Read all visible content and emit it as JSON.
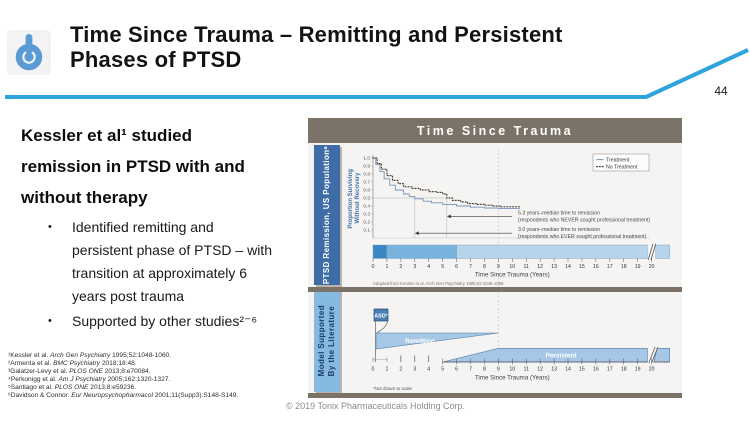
{
  "slide": {
    "title_line1": "Time Since Trauma – Remitting and Persistent",
    "title_line2": "Phases of PTSD",
    "page_number": "44",
    "copyright": "© 2019 Tonix Pharmaceuticals Holding Corp.",
    "accent_color": "#2ea4dd",
    "logo_color": "#5b9bd5"
  },
  "left_panel": {
    "heading": "Kessler et al¹ studied remission in PTSD with and without therapy",
    "bullet_marker": "•",
    "bullets": [
      "Identified remitting and persistent phase of PTSD – with transition at approximately 6 years post trauma",
      "Supported by other studies²⁻⁶"
    ],
    "references": [
      {
        "pre": "¹Kessler et al. ",
        "journal": "Arch Gen Psychiatry",
        "post": " 1995;52:1048-1060."
      },
      {
        "pre": "²Armenta et al. ",
        "journal": "BMC Psychiatry",
        "post": " 2018;18:48."
      },
      {
        "pre": "³Galatzer-Levy et al. ",
        "journal": "PLOS ONE",
        "post": " 2013;8:e70084."
      },
      {
        "pre": "⁴Perkonigg et al. ",
        "journal": "Am J Psychiatry",
        "post": " 2005;162:1320-1327."
      },
      {
        "pre": "⁵Santiago et al. ",
        "journal": "PLOS ONE",
        "post": " 2013;8:e59236."
      },
      {
        "pre": "⁶Davidson & Connor. ",
        "journal": "Eur Neuropsychopharmacol",
        "post": " 2001;11(Supp3):S148-S149."
      }
    ]
  },
  "figure": {
    "header": "Time Since Trauma",
    "sidebar_top": "PTSD Remission, US Populationᵃ",
    "sidebar_bottom_line1": "Model Supported",
    "sidebar_bottom_line2": "By the Literature",
    "header_color": "#7b7268",
    "sidebar_top_color": "#3e6ca6",
    "sidebar_bottom_color": "#86b9e0"
  },
  "chart_data": [
    {
      "type": "line",
      "subtype": "kaplan-meier-survival",
      "title": "PTSD Remission, US Population",
      "xlabel": "Time Since Trauma (Years)",
      "ylabel": "Proportion Surviving Without Recovery",
      "xlim": [
        0,
        21.3
      ],
      "ylim": [
        0,
        1.0
      ],
      "x_ticks": [
        0,
        1,
        2,
        3,
        4,
        5,
        6,
        7,
        8,
        9,
        10,
        11,
        12,
        13,
        14,
        15,
        16,
        17,
        18,
        19,
        20
      ],
      "y_ticks": [
        1.0,
        0.9,
        0.8,
        0.7,
        0.6,
        0.5,
        0.4,
        0.3,
        0.2,
        0.1
      ],
      "axis_break_after_year": 20,
      "grid": false,
      "legend_position": "top-right",
      "legend": [
        "Treatment",
        "No Treatment"
      ],
      "series": [
        {
          "name": "Treatment",
          "style": "solid",
          "color": "#7693b8",
          "points": [
            [
              0,
              1.0
            ],
            [
              0.2,
              0.92
            ],
            [
              0.5,
              0.83
            ],
            [
              0.8,
              0.74
            ],
            [
              1.2,
              0.66
            ],
            [
              1.6,
              0.6
            ],
            [
              2.2,
              0.55
            ],
            [
              2.6,
              0.52
            ],
            [
              3.0,
              0.49
            ],
            [
              3.6,
              0.46
            ],
            [
              4.2,
              0.44
            ],
            [
              5.0,
              0.42
            ],
            [
              6.0,
              0.4
            ],
            [
              7.0,
              0.385
            ],
            [
              8.0,
              0.375
            ],
            [
              9.0,
              0.37
            ],
            [
              10.5,
              0.36
            ]
          ]
        },
        {
          "name": "No Treatment",
          "style": "dotted",
          "color": "#45413c",
          "points": [
            [
              0,
              1.0
            ],
            [
              0.3,
              0.93
            ],
            [
              0.6,
              0.86
            ],
            [
              1.0,
              0.78
            ],
            [
              1.4,
              0.72
            ],
            [
              1.8,
              0.68
            ],
            [
              2.2,
              0.64
            ],
            [
              2.8,
              0.62
            ],
            [
              3.4,
              0.6
            ],
            [
              4.0,
              0.58
            ],
            [
              4.6,
              0.57
            ],
            [
              5.0,
              0.55
            ],
            [
              5.3,
              0.5
            ],
            [
              5.7,
              0.47
            ],
            [
              6.3,
              0.45
            ],
            [
              6.8,
              0.43
            ],
            [
              7.4,
              0.42
            ],
            [
              8.0,
              0.41
            ],
            [
              8.6,
              0.4
            ],
            [
              9.2,
              0.39
            ],
            [
              10.5,
              0.38
            ]
          ]
        }
      ],
      "median_refline_y": 0.5,
      "annotations": [
        {
          "value_years": 5.3,
          "arrow_y": 0.27,
          "line1": "5.3 years–median time to remission",
          "line2": "(respondents who NEVER sought professional treatment)"
        },
        {
          "value_years": 3.0,
          "arrow_y": 0.06,
          "line1": "3.0 years–median time to remission",
          "line2": "(respondents who EVER sought professional treatment)"
        }
      ],
      "timeline_bar": {
        "segments": [
          {
            "from": 0,
            "to": 1,
            "color": "#3c87c3"
          },
          {
            "from": 1,
            "to": 6,
            "color": "#79b2dc"
          },
          {
            "from": 6,
            "to": 19.7,
            "color": "#b7d4ea"
          },
          {
            "from": 20.3,
            "to": 21.3,
            "color": "#b7d4ea"
          }
        ],
        "break_at": 20
      },
      "caption": "Adapted from Kessler et al. Arch Gen Psychiatry 1995;52:1048-1060."
    },
    {
      "type": "area",
      "subtype": "phase-diagram",
      "title": "Model Supported By the Literature",
      "xlabel": "Time Since Trauma (Years)",
      "x_ticks": [
        0,
        1,
        2,
        3,
        4,
        5,
        6,
        7,
        8,
        9,
        10,
        11,
        12,
        13,
        14,
        15,
        16,
        17,
        18,
        19,
        20
      ],
      "axis_break_after_year": 20,
      "acute_box_label": "ASD*",
      "phases": [
        {
          "label": "Remitting",
          "start_years": 0.2,
          "end_years": 9,
          "shape": "tapering-to-point"
        },
        {
          "label": "Persistent",
          "start_years": 5,
          "end_years": 21.3,
          "shape": "expanding-then-constant"
        }
      ],
      "band_color": "#a6c7e5",
      "band_border": "#4f7cab",
      "asd_box_color": "#4a80b5",
      "footnote": "*Not drawn to scale"
    }
  ]
}
